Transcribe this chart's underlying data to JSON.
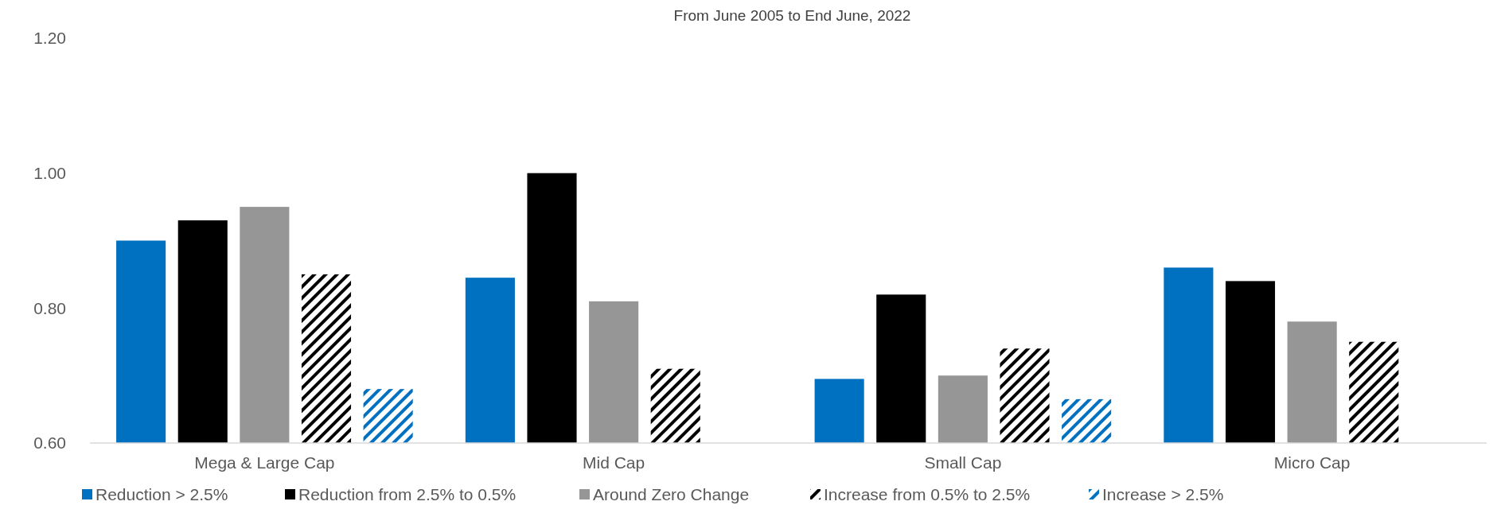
{
  "chart_data": {
    "type": "bar",
    "subtitle": "From June 2005 to End June, 2022",
    "categories": [
      "Mega & Large Cap",
      "Mid Cap",
      "Small Cap",
      "Micro Cap"
    ],
    "series": [
      {
        "name": "Reduction > 2.5%",
        "color": "#0070c0",
        "values": [
          0.9,
          0.845,
          0.695,
          0.86
        ]
      },
      {
        "name": "Reduction from 2.5% to 0.5%",
        "color": "#000000",
        "values": [
          0.93,
          1.0,
          0.82,
          0.84
        ]
      },
      {
        "name": "Around Zero Change",
        "color": "#969696",
        "values": [
          0.95,
          0.81,
          0.7,
          0.78
        ]
      },
      {
        "name": "Increase from 0.5% to 2.5%",
        "color": "#000000",
        "values": [
          0.85,
          0.71,
          0.74,
          0.75
        ]
      },
      {
        "name": "Increase > 2.5%",
        "color": "#0070c0",
        "values": [
          0.68,
          0.6,
          0.665,
          0.6
        ]
      }
    ],
    "ylim": [
      0.6,
      1.2
    ],
    "yticks": [
      {
        "value": 0.6,
        "label": "0.60"
      },
      {
        "value": 0.8,
        "label": "0.80"
      },
      {
        "value": 1.0,
        "label": "1.00"
      },
      {
        "value": 1.2,
        "label": "1.20"
      }
    ],
    "grid": false,
    "legend": "bottom"
  }
}
